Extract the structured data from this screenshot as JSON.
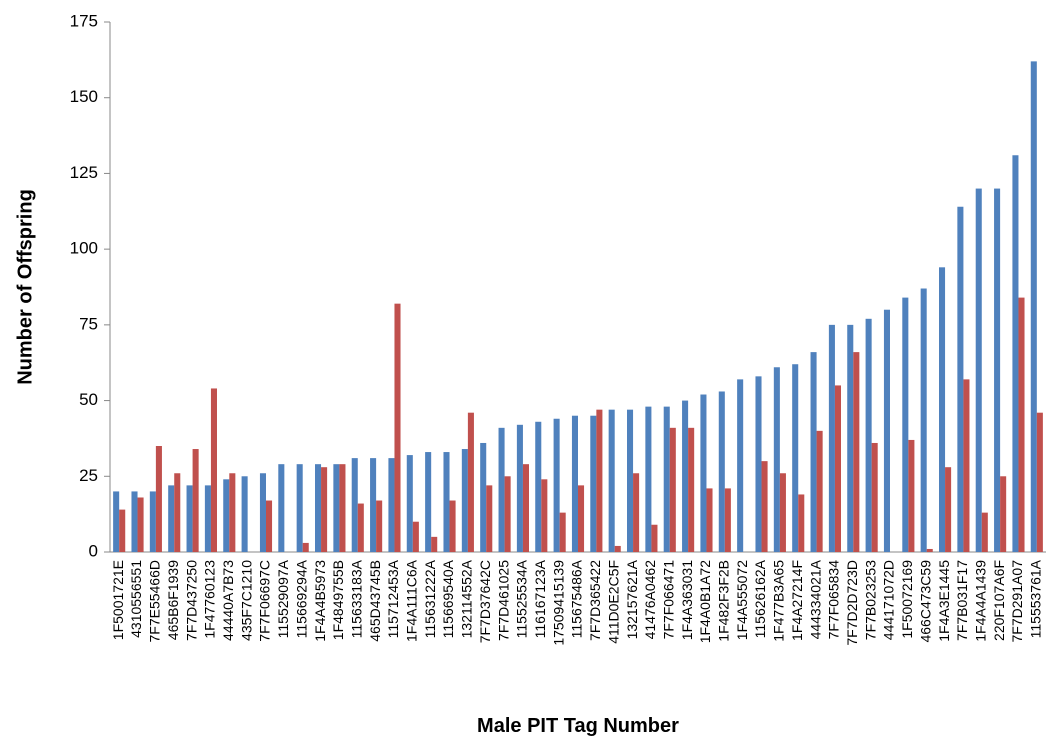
{
  "chart_data": {
    "type": "bar",
    "x_label": "Male PIT Tag Number",
    "y_label": "Number of Offspring",
    "categories": [
      "1F5001721E",
      "4310556551",
      "7F7E55466D",
      "465B6F1939",
      "7F7D437250",
      "1F47760123",
      "44440A7B73",
      "435F7C1210",
      "7F7F06697C",
      "115529097A",
      "115669294A",
      "1F4A4B5973",
      "1F4849755B",
      "115633183A",
      "465D43745B",
      "115712453A",
      "1F4A111C6A",
      "115631222A",
      "115669540A",
      "132114552A",
      "7F7D37642C",
      "7F7D461025",
      "115525534A",
      "116167123A",
      "17509415139",
      "115675486A",
      "7F7D365422",
      "411D0E2C5F",
      "132157621A",
      "41476A0462",
      "7F7F066471",
      "1F4A363031",
      "1F4A0B1A72",
      "1F482F3F2B",
      "1F4A555072",
      "115626162A",
      "1F477B3A65",
      "1F4A27214F",
      "444334021A",
      "7F7F065834",
      "7F7D2D723D",
      "7F7B023253",
      "444171072D",
      "1F50072169",
      "466C473C59",
      "1F4A3E1445",
      "7F7B031F17",
      "1F4A4A1439",
      "220F107A6F",
      "7F7D291A07",
      "115553761A"
    ],
    "series": [
      {
        "color": "#4f81bd",
        "values": [
          20,
          20,
          20,
          22,
          22,
          22,
          24,
          25,
          26,
          29,
          29,
          29,
          29,
          31,
          31,
          31,
          32,
          33,
          33,
          34,
          36,
          41,
          42,
          43,
          44,
          45,
          45,
          47,
          47,
          48,
          48,
          50,
          52,
          53,
          57,
          58,
          61,
          62,
          66,
          75,
          75,
          77,
          80,
          84,
          87,
          94,
          114,
          120,
          120,
          131,
          162
        ]
      },
      {
        "color": "#c0504d",
        "values": [
          14,
          18,
          35,
          26,
          34,
          54,
          26,
          0,
          17,
          0,
          3,
          28,
          29,
          16,
          17,
          82,
          10,
          5,
          17,
          46,
          22,
          25,
          29,
          24,
          13,
          22,
          47,
          2,
          26,
          9,
          41,
          41,
          21,
          21,
          0,
          30,
          26,
          19,
          40,
          55,
          66,
          36,
          0,
          37,
          1,
          28,
          57,
          13,
          25,
          84,
          46
        ]
      }
    ],
    "ylim": [
      0,
      175
    ],
    "yticks": [
      0,
      25,
      50,
      75,
      100,
      125,
      150,
      175
    ],
    "grid": false
  }
}
